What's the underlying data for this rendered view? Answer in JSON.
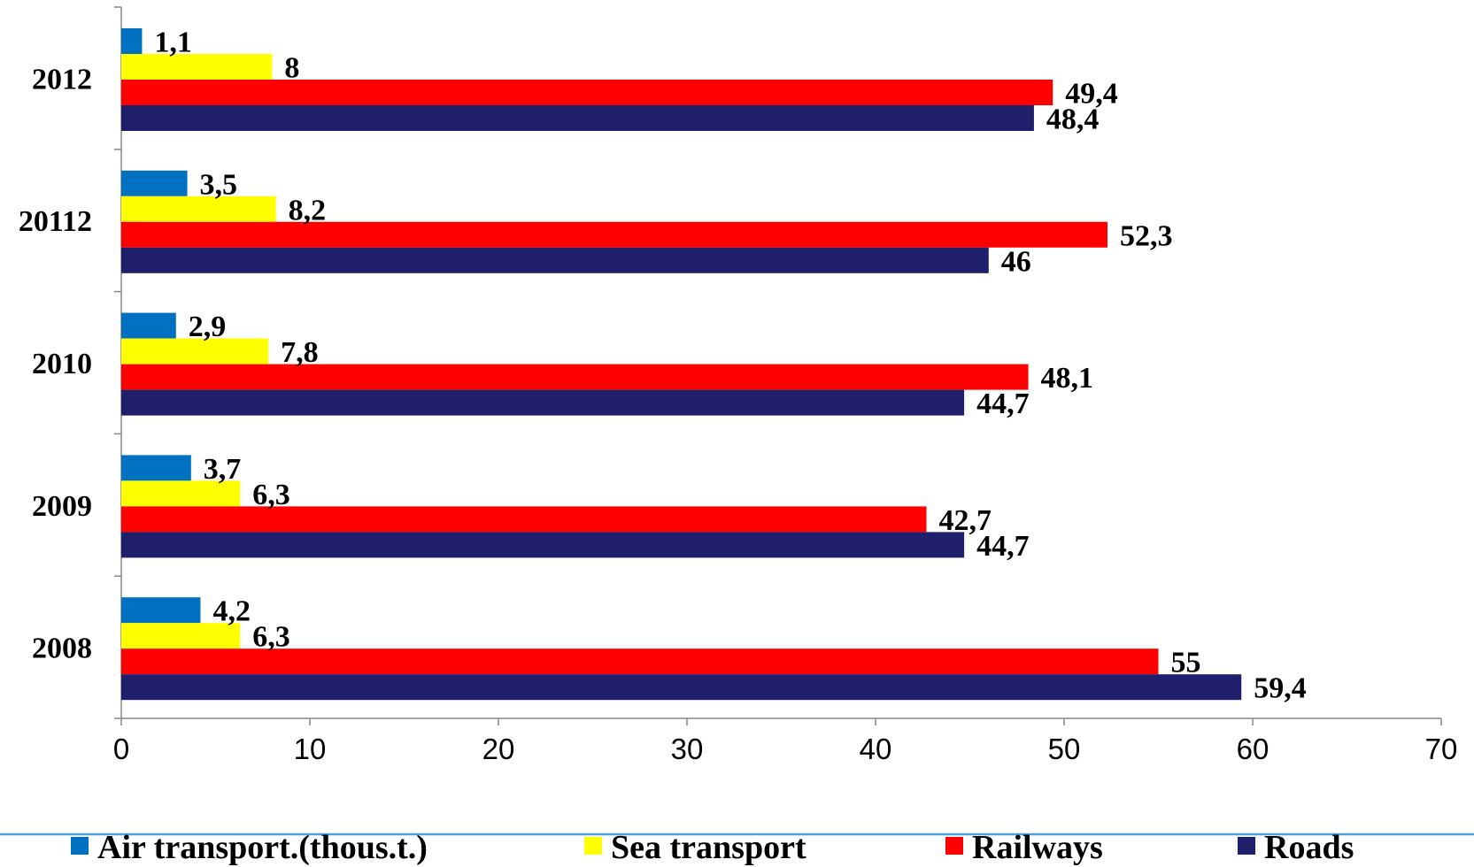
{
  "chart_data": {
    "type": "bar",
    "orientation": "horizontal",
    "categories": [
      "2012",
      "20112",
      "2010",
      "2009",
      "2008"
    ],
    "series": [
      {
        "name": "Air transport.(thous.t.)",
        "color": "#0070C0",
        "values": [
          1.1,
          3.5,
          2.9,
          3.7,
          4.2
        ],
        "labels": [
          "1,1",
          "3,5",
          "2,9",
          "3,7",
          "4,2"
        ]
      },
      {
        "name": "Sea transport",
        "color": "#FFFF00",
        "values": [
          8,
          8.2,
          7.8,
          6.3,
          6.3
        ],
        "labels": [
          "8",
          "8,2",
          "7,8",
          "6,3",
          "6,3"
        ]
      },
      {
        "name": "Railways",
        "color": "#FF0000",
        "values": [
          49.4,
          52.3,
          48.1,
          42.7,
          55
        ],
        "labels": [
          "49,4",
          "52,3",
          "48,1",
          "42,7",
          "55"
        ]
      },
      {
        "name": "Roads",
        "color": "#1F1F6B",
        "values": [
          48.4,
          46,
          44.7,
          44.7,
          59.4
        ],
        "labels": [
          "48,4",
          "46",
          "44,7",
          "44,7",
          "59,4"
        ]
      }
    ],
    "xlim": [
      0,
      70
    ],
    "x_ticks": [
      0,
      10,
      20,
      30,
      40,
      50,
      60,
      70
    ],
    "grid": false,
    "legend_position": "bottom",
    "title": "",
    "xlabel": "",
    "ylabel": ""
  }
}
